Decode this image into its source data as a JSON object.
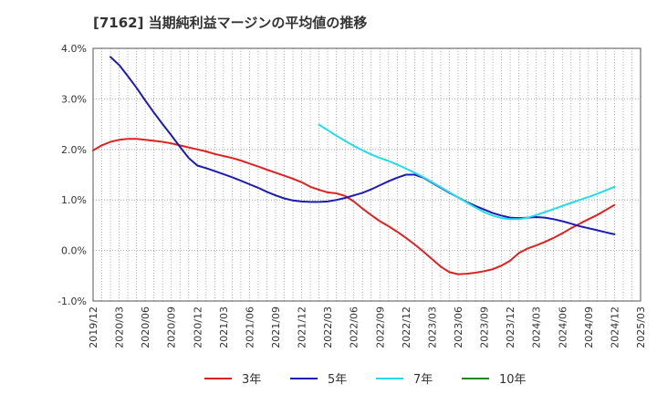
{
  "title": "[7162]  当期純利益マージンの平均値の推移",
  "chart_data": {
    "type": "line",
    "title": "[7162]  当期純利益マージンの平均値の推移",
    "xlabel": "",
    "ylabel": "",
    "x_tick_labels": [
      "2019/12",
      "2020/03",
      "2020/06",
      "2020/09",
      "2020/12",
      "2021/03",
      "2021/06",
      "2021/09",
      "2021/12",
      "2022/03",
      "2022/06",
      "2022/09",
      "2022/12",
      "2023/03",
      "2023/06",
      "2023/09",
      "2023/12",
      "2024/03",
      "2024/06",
      "2024/09",
      "2024/12",
      "2025/03"
    ],
    "y_tick_labels": [
      "4.0%",
      "3.0%",
      "2.0%",
      "1.0%",
      "0.0%",
      "-1.0%"
    ],
    "y_ticks": [
      4.0,
      3.0,
      2.0,
      1.0,
      0.0,
      -1.0
    ],
    "ylim": [
      -1.0,
      4.0
    ],
    "grid": true,
    "legend_position": "bottom",
    "series": [
      {
        "name": "3年",
        "color": "#dd2222",
        "points": [
          [
            "2019/12",
            1.98
          ],
          [
            "2020/01",
            2.08
          ],
          [
            "2020/02",
            2.15
          ],
          [
            "2020/03",
            2.19
          ],
          [
            "2020/04",
            2.21
          ],
          [
            "2020/05",
            2.21
          ],
          [
            "2020/06",
            2.19
          ],
          [
            "2020/07",
            2.17
          ],
          [
            "2020/08",
            2.15
          ],
          [
            "2020/09",
            2.12
          ],
          [
            "2020/10",
            2.08
          ],
          [
            "2020/11",
            2.04
          ],
          [
            "2020/12",
            2.0
          ],
          [
            "2021/01",
            1.96
          ],
          [
            "2021/02",
            1.91
          ],
          [
            "2021/03",
            1.87
          ],
          [
            "2021/04",
            1.83
          ],
          [
            "2021/05",
            1.78
          ],
          [
            "2021/06",
            1.72
          ],
          [
            "2021/07",
            1.66
          ],
          [
            "2021/08",
            1.6
          ],
          [
            "2021/09",
            1.54
          ],
          [
            "2021/10",
            1.48
          ],
          [
            "2021/11",
            1.42
          ],
          [
            "2021/12",
            1.35
          ],
          [
            "2022/01",
            1.26
          ],
          [
            "2022/02",
            1.2
          ],
          [
            "2022/03",
            1.15
          ],
          [
            "2022/04",
            1.13
          ],
          [
            "2022/05",
            1.08
          ],
          [
            "2022/06",
            0.97
          ],
          [
            "2022/07",
            0.83
          ],
          [
            "2022/08",
            0.7
          ],
          [
            "2022/09",
            0.58
          ],
          [
            "2022/10",
            0.48
          ],
          [
            "2022/11",
            0.37
          ],
          [
            "2022/12",
            0.25
          ],
          [
            "2023/01",
            0.12
          ],
          [
            "2023/02",
            -0.02
          ],
          [
            "2023/03",
            -0.17
          ],
          [
            "2023/04",
            -0.32
          ],
          [
            "2023/05",
            -0.43
          ],
          [
            "2023/06",
            -0.47
          ],
          [
            "2023/07",
            -0.46
          ],
          [
            "2023/08",
            -0.44
          ],
          [
            "2023/09",
            -0.41
          ],
          [
            "2023/10",
            -0.37
          ],
          [
            "2023/11",
            -0.3
          ],
          [
            "2023/12",
            -0.2
          ],
          [
            "2024/01",
            -0.05
          ],
          [
            "2024/02",
            0.04
          ],
          [
            "2024/03",
            0.1
          ],
          [
            "2024/04",
            0.17
          ],
          [
            "2024/05",
            0.25
          ],
          [
            "2024/06",
            0.34
          ],
          [
            "2024/07",
            0.44
          ],
          [
            "2024/08",
            0.53
          ],
          [
            "2024/09",
            0.62
          ],
          [
            "2024/10",
            0.7
          ],
          [
            "2024/11",
            0.8
          ],
          [
            "2024/12",
            0.9
          ]
        ]
      },
      {
        "name": "5年",
        "color": "#1c1cb4",
        "points": [
          [
            "2020/02",
            3.83
          ],
          [
            "2020/03",
            3.67
          ],
          [
            "2020/04",
            3.45
          ],
          [
            "2020/05",
            3.22
          ],
          [
            "2020/06",
            2.97
          ],
          [
            "2020/07",
            2.73
          ],
          [
            "2020/08",
            2.5
          ],
          [
            "2020/09",
            2.28
          ],
          [
            "2020/10",
            2.05
          ],
          [
            "2020/11",
            1.83
          ],
          [
            "2020/12",
            1.68
          ],
          [
            "2021/01",
            1.63
          ],
          [
            "2021/02",
            1.57
          ],
          [
            "2021/03",
            1.51
          ],
          [
            "2021/04",
            1.45
          ],
          [
            "2021/05",
            1.38
          ],
          [
            "2021/06",
            1.31
          ],
          [
            "2021/07",
            1.24
          ],
          [
            "2021/08",
            1.16
          ],
          [
            "2021/09",
            1.09
          ],
          [
            "2021/10",
            1.03
          ],
          [
            "2021/11",
            0.99
          ],
          [
            "2021/12",
            0.97
          ],
          [
            "2022/01",
            0.96
          ],
          [
            "2022/02",
            0.96
          ],
          [
            "2022/03",
            0.97
          ],
          [
            "2022/04",
            1.0
          ],
          [
            "2022/05",
            1.04
          ],
          [
            "2022/06",
            1.09
          ],
          [
            "2022/07",
            1.14
          ],
          [
            "2022/08",
            1.21
          ],
          [
            "2022/09",
            1.29
          ],
          [
            "2022/10",
            1.37
          ],
          [
            "2022/11",
            1.44
          ],
          [
            "2022/12",
            1.5
          ],
          [
            "2023/01",
            1.5
          ],
          [
            "2023/02",
            1.44
          ],
          [
            "2023/03",
            1.34
          ],
          [
            "2023/04",
            1.24
          ],
          [
            "2023/05",
            1.14
          ],
          [
            "2023/06",
            1.05
          ],
          [
            "2023/07",
            0.96
          ],
          [
            "2023/08",
            0.88
          ],
          [
            "2023/09",
            0.81
          ],
          [
            "2023/10",
            0.74
          ],
          [
            "2023/11",
            0.69
          ],
          [
            "2023/12",
            0.65
          ],
          [
            "2024/01",
            0.64
          ],
          [
            "2024/02",
            0.65
          ],
          [
            "2024/03",
            0.66
          ],
          [
            "2024/04",
            0.65
          ],
          [
            "2024/05",
            0.62
          ],
          [
            "2024/06",
            0.58
          ],
          [
            "2024/07",
            0.53
          ],
          [
            "2024/08",
            0.48
          ],
          [
            "2024/09",
            0.44
          ],
          [
            "2024/10",
            0.4
          ],
          [
            "2024/11",
            0.36
          ],
          [
            "2024/12",
            0.32
          ]
        ]
      },
      {
        "name": "7年",
        "color": "#22dcec",
        "points": [
          [
            "2022/02",
            2.49
          ],
          [
            "2022/03",
            2.38
          ],
          [
            "2022/04",
            2.27
          ],
          [
            "2022/05",
            2.17
          ],
          [
            "2022/06",
            2.07
          ],
          [
            "2022/07",
            1.98
          ],
          [
            "2022/08",
            1.9
          ],
          [
            "2022/09",
            1.83
          ],
          [
            "2022/10",
            1.77
          ],
          [
            "2022/11",
            1.7
          ],
          [
            "2022/12",
            1.62
          ],
          [
            "2023/01",
            1.54
          ],
          [
            "2023/02",
            1.45
          ],
          [
            "2023/03",
            1.35
          ],
          [
            "2023/04",
            1.25
          ],
          [
            "2023/05",
            1.15
          ],
          [
            "2023/06",
            1.05
          ],
          [
            "2023/07",
            0.95
          ],
          [
            "2023/08",
            0.85
          ],
          [
            "2023/09",
            0.76
          ],
          [
            "2023/10",
            0.69
          ],
          [
            "2023/11",
            0.64
          ],
          [
            "2023/12",
            0.62
          ],
          [
            "2024/01",
            0.62
          ],
          [
            "2024/02",
            0.65
          ],
          [
            "2024/03",
            0.7
          ],
          [
            "2024/04",
            0.76
          ],
          [
            "2024/05",
            0.82
          ],
          [
            "2024/06",
            0.88
          ],
          [
            "2024/07",
            0.94
          ],
          [
            "2024/08",
            1.0
          ],
          [
            "2024/09",
            1.06
          ],
          [
            "2024/10",
            1.12
          ],
          [
            "2024/11",
            1.19
          ],
          [
            "2024/12",
            1.26
          ]
        ]
      },
      {
        "name": "10年",
        "color": "#228822",
        "points": []
      }
    ]
  }
}
